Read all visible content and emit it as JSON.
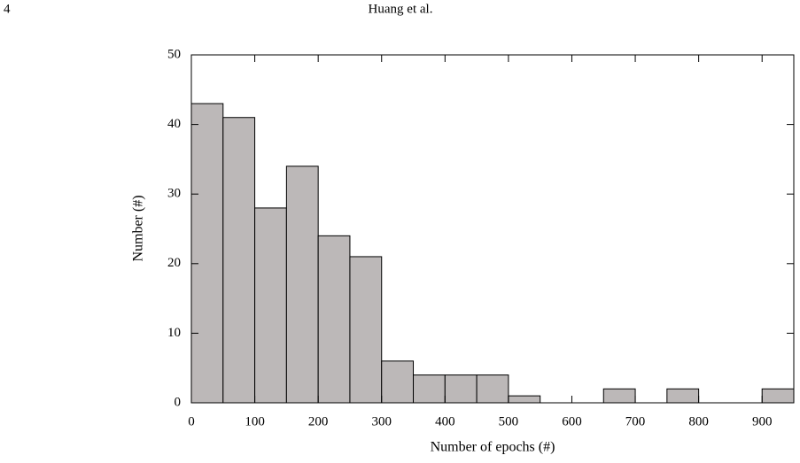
{
  "header": {
    "page_number": "4",
    "authors": "Huang et al."
  },
  "chart_data": {
    "type": "histogram",
    "xlabel": "Number of epochs (#)",
    "ylabel": "Number (#)",
    "bins": [
      0,
      50,
      100,
      150,
      200,
      250,
      300,
      350,
      400,
      450,
      500,
      550,
      600,
      650,
      700,
      750,
      800,
      850,
      900,
      950
    ],
    "counts": [
      43,
      41,
      28,
      34,
      24,
      21,
      6,
      4,
      4,
      4,
      1,
      0,
      0,
      2,
      0,
      2,
      0,
      0,
      2
    ],
    "color": "#bcb8b8",
    "xlim": [
      0,
      950
    ],
    "xticks": [
      0,
      100,
      200,
      300,
      400,
      500,
      600,
      700,
      800,
      900
    ],
    "ylim": [
      0,
      50
    ],
    "yticks": [
      0,
      10,
      20,
      30,
      40,
      50
    ]
  }
}
